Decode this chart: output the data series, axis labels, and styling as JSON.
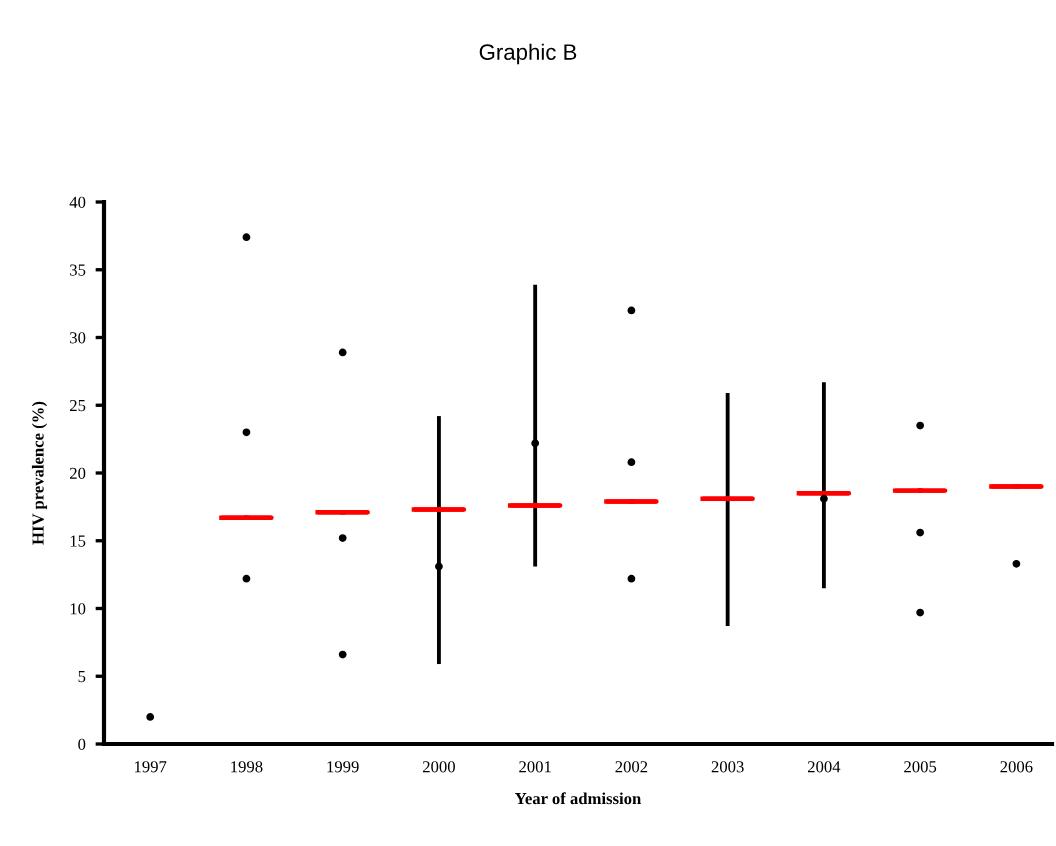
{
  "chart_data": {
    "type": "scatter",
    "title": "Graphic B",
    "xlabel": "Year of admission",
    "ylabel": "HIV prevalence (%)",
    "categories": [
      "1997",
      "1998",
      "1999",
      "2000",
      "2001",
      "2002",
      "2003",
      "2004",
      "2005",
      "2006"
    ],
    "ylim": [
      0,
      40
    ],
    "yticks": [
      0,
      5,
      10,
      15,
      20,
      25,
      30,
      35,
      40
    ],
    "grid": false,
    "legend": false,
    "series": [
      {
        "type": "bar",
        "color": "#000000",
        "values": [
          null,
          null,
          null,
          18.3,
          20.8,
          null,
          17.2,
          15.2,
          null,
          null
        ],
        "base": [
          null,
          null,
          null,
          5.9,
          13.1,
          null,
          8.7,
          11.5,
          null,
          null
        ]
      },
      {
        "color": "#000000",
        "marker": "circle",
        "values": [
          2.0,
          37.4,
          28.9,
          13.1,
          22.2,
          32.0,
          null,
          18.1,
          23.5,
          13.3
        ]
      },
      {
        "color": "#000000",
        "marker": "circle",
        "values": [
          null,
          23.0,
          15.2,
          null,
          null,
          20.8,
          null,
          null,
          15.6,
          null
        ]
      },
      {
        "color": "#000000",
        "marker": "circle",
        "values": [
          null,
          12.2,
          6.6,
          null,
          null,
          12.2,
          null,
          null,
          9.7,
          null
        ]
      },
      {
        "type": "box",
        "color": "#ff0000",
        "boxes": [
          null,
          {
            "low": 16.7,
            "q1": 16.7,
            "median": 16.7,
            "q3": 16.7,
            "high": 16.7
          },
          {
            "low": 17.1,
            "q1": 17.1,
            "median": 17.1,
            "q3": 17.1,
            "high": 17.1
          },
          {
            "low": 17.3,
            "q1": 17.3,
            "median": 17.3,
            "q3": 17.3,
            "high": 17.3
          },
          {
            "low": 17.6,
            "q1": 17.6,
            "median": 17.6,
            "q3": 17.6,
            "high": 17.6
          },
          {
            "low": 17.9,
            "q1": 17.9,
            "median": 17.9,
            "q3": 17.9,
            "high": 17.9
          },
          {
            "low": 18.1,
            "q1": 18.1,
            "median": 18.1,
            "q3": 18.1,
            "high": 18.1
          },
          {
            "low": 18.5,
            "q1": 18.5,
            "median": 18.5,
            "q3": 18.5,
            "high": 18.5
          },
          {
            "low": 18.7,
            "q1": 18.7,
            "median": 18.7,
            "q3": 18.7,
            "high": 18.7
          },
          {
            "low": 19.0,
            "q1": 19.0,
            "median": 19.0,
            "q3": 19.0,
            "high": 19.0
          }
        ]
      }
    ]
  }
}
